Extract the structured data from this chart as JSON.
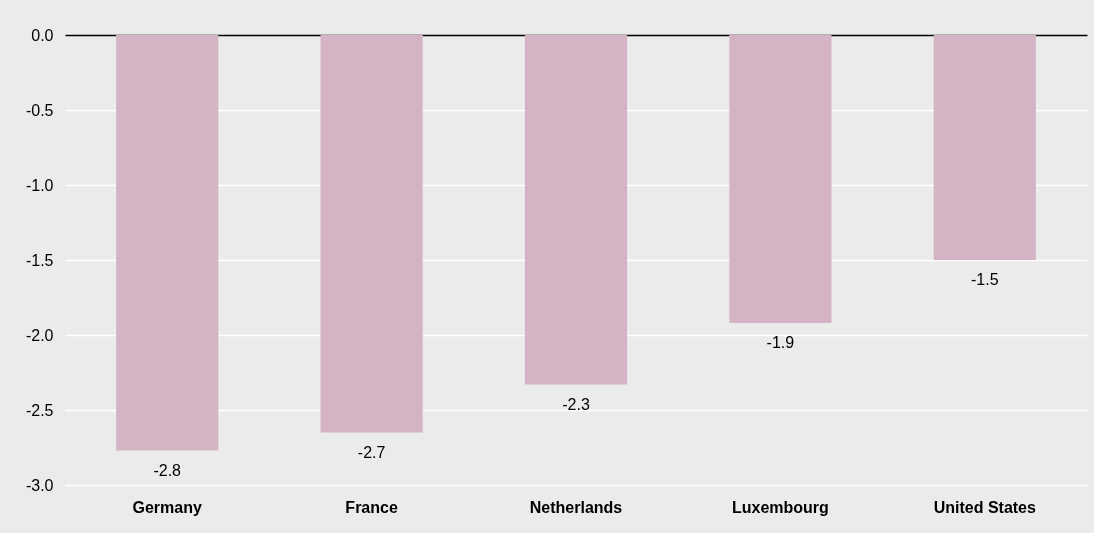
{
  "chart_data": {
    "type": "bar",
    "categories": [
      "Germany",
      "France",
      "Netherlands",
      "Luxembourg",
      "United States"
    ],
    "values": [
      -2.77,
      -2.65,
      -2.33,
      -1.92,
      -1.5
    ],
    "value_labels": [
      "-2.8",
      "-2.7",
      "-2.3",
      "-1.9",
      "-1.5"
    ],
    "color": "#d4b3c4",
    "ylim": [
      -3,
      0
    ],
    "yticks": [
      {
        "value": 0,
        "label": "0.0"
      },
      {
        "value": -0.5,
        "label": "-0.5"
      },
      {
        "value": -1,
        "label": "-1.0"
      },
      {
        "value": -1.5,
        "label": "-1.5"
      },
      {
        "value": -2,
        "label": "-2.0"
      },
      {
        "value": -2.5,
        "label": "-2.5"
      },
      {
        "value": -3,
        "label": "-3.0"
      }
    ],
    "grid": "y"
  }
}
